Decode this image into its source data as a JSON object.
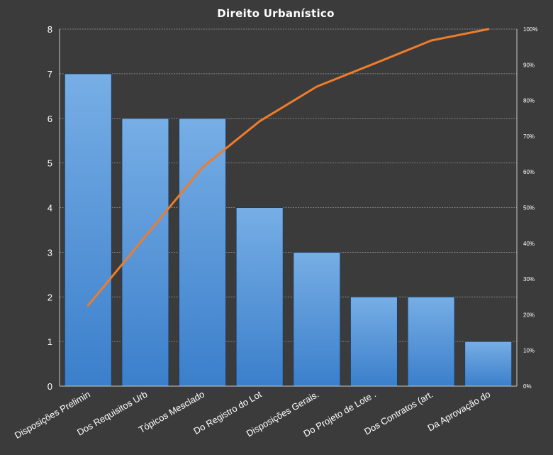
{
  "chart_data": {
    "type": "bar",
    "title": "Direito  Urbanístico",
    "categories": [
      "Disposições Prelimin",
      "Dos Requisitos Urb",
      "Tópicos Mesclado",
      "Do Registro do Lot",
      "Disposições Gerais.",
      "Do Projeto de Lote .",
      "Dos Contratos (art.",
      "Da Aprovação do"
    ],
    "series": [
      {
        "type": "bar",
        "values": [
          7,
          6,
          6,
          4,
          3,
          2,
          2,
          1
        ]
      },
      {
        "type": "line",
        "axis": "right",
        "values": [
          0.226,
          0.419,
          0.613,
          0.742,
          0.839,
          0.903,
          0.968,
          1.0
        ]
      }
    ],
    "ylim": [
      0,
      8
    ],
    "yticks": [
      "0",
      "1",
      "2",
      "3",
      "4",
      "5",
      "6",
      "7",
      "8"
    ],
    "y2lim": [
      0,
      1
    ],
    "y2ticks": [
      "0%",
      "10%",
      "20%",
      "30%",
      "40%",
      "50%",
      "60%",
      "70%",
      "80%",
      "90%",
      "100%"
    ],
    "grid": true,
    "legend": "none",
    "colors": {
      "background": "#3b3b3b",
      "plot_background": "#3b3b3b",
      "bar_top": "#77aee5",
      "bar_bottom": "#3b7fcb",
      "line": "#ef7c2b",
      "text": "#ffffff"
    }
  }
}
